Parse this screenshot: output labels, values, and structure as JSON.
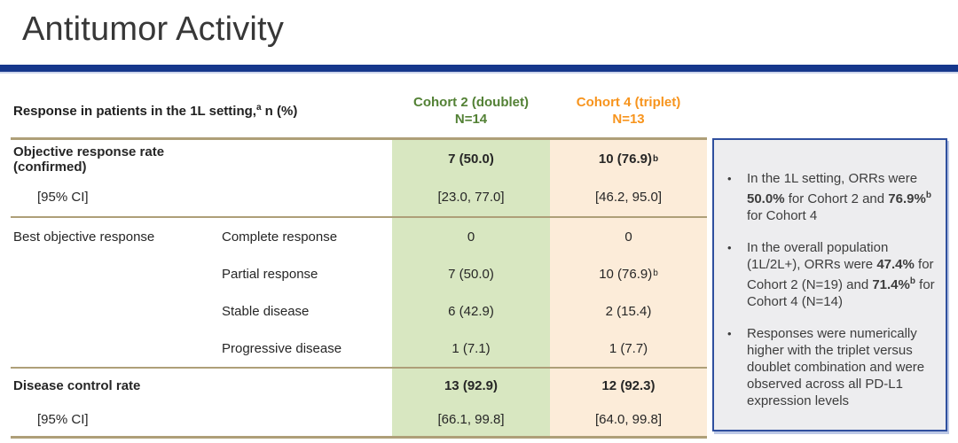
{
  "slide": {
    "title": "Antitumor Activity"
  },
  "table": {
    "header": {
      "label_prefix": "Response in patients in the 1L setting,",
      "label_sup": "a",
      "label_suffix": " n (%)",
      "cohort2_line1": "Cohort 2 (doublet)",
      "cohort2_line2": "N=14",
      "cohort4_line1": "Cohort 4 (triplet)",
      "cohort4_line2": "N=13"
    },
    "rows": [
      {
        "label": "Objective response rate (confirmed)",
        "sublabel": "",
        "c2": "7 (50.0)",
        "c4": "10 (76.9)",
        "c4_sup": "b",
        "bold": true
      },
      {
        "label": "[95% CI]",
        "indent": true,
        "sublabel": "",
        "c2": "[23.0, 77.0]",
        "c4": "[46.2, 95.0]"
      },
      {
        "label": "Best objective response",
        "sublabel": "Complete response",
        "c2": "0",
        "c4": "0",
        "section_start": true
      },
      {
        "label": "",
        "sublabel": "Partial response",
        "c2": "7 (50.0)",
        "c4": "10 (76.9)",
        "c4_sup": "b"
      },
      {
        "label": "",
        "sublabel": "Stable disease",
        "c2": "6 (42.9)",
        "c4": "2 (15.4)"
      },
      {
        "label": "",
        "sublabel": "Progressive disease",
        "c2": "1 (7.1)",
        "c4": "1 (7.7)"
      },
      {
        "label": "Disease control rate",
        "sublabel": "",
        "c2": "13 (92.9)",
        "c4": "12 (92.3)",
        "bold": true,
        "section_start": true
      },
      {
        "label": "[95% CI]",
        "indent": true,
        "sublabel": "",
        "c2": "[66.1, 99.8]",
        "c4": "[64.0, 99.8]"
      }
    ]
  },
  "sidebar": {
    "bullet_glyph": "•",
    "bullets": [
      {
        "segments": [
          {
            "text": "In the 1L setting, ORRs were "
          },
          {
            "text": "50.0%",
            "bold": true
          },
          {
            "text": " for Cohort 2 and "
          },
          {
            "text": "76.9%",
            "bold": true
          },
          {
            "text": "b",
            "bold": true,
            "sup": true
          },
          {
            "text": " for Cohort 4"
          }
        ]
      },
      {
        "segments": [
          {
            "text": "In the overall population (1L/2L+), ORRs were "
          },
          {
            "text": "47.4%",
            "bold": true
          },
          {
            "text": " for Cohort 2 (N=19) and "
          },
          {
            "text": "71.4%",
            "bold": true
          },
          {
            "text": "b",
            "bold": true,
            "sup": true
          },
          {
            "text": " for Cohort 4 (N=14)"
          }
        ]
      },
      {
        "segments": [
          {
            "text": "Responses were numerically higher with the triplet versus doublet combination and were observed across all PD-L1 expression levels"
          }
        ]
      }
    ]
  },
  "colors": {
    "rule_blue": "#16378c",
    "cohort2_green": "#538135",
    "cohort4_orange": "#f7941d",
    "cell_green": "#d8e7c1",
    "cell_orange": "#fcecd9",
    "line_tan": "#ae9f78",
    "sidebar_border": "#2f4f9e",
    "sidebar_bg": "#ededef"
  }
}
